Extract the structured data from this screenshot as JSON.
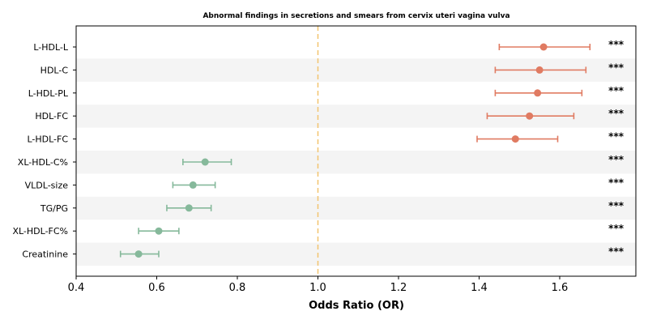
{
  "chart_data": {
    "type": "forest",
    "title": "Abnormal findings in secretions and smears from cervix uteri vagina vulva",
    "xlabel": "Odds Ratio (OR)",
    "xlim": [
      0.4,
      1.76
    ],
    "xticks": [
      "0.4",
      "0.6",
      "0.8",
      "1.0",
      "1.2",
      "1.4",
      "1.6"
    ],
    "reference_line": 1.0,
    "grid": false,
    "colors": {
      "positive": "#e07b62",
      "negative": "#86b99b",
      "reference": "#f2c46f",
      "band": "#f4f4f4"
    },
    "rows": [
      {
        "label": "L-HDL-L",
        "or": 1.56,
        "ci_low": 1.45,
        "ci_high": 1.675,
        "sig": "***"
      },
      {
        "label": "HDL-C",
        "or": 1.55,
        "ci_low": 1.44,
        "ci_high": 1.665,
        "sig": "***"
      },
      {
        "label": "L-HDL-PL",
        "or": 1.545,
        "ci_low": 1.44,
        "ci_high": 1.655,
        "sig": "***"
      },
      {
        "label": "HDL-FC",
        "or": 1.525,
        "ci_low": 1.42,
        "ci_high": 1.635,
        "sig": "***"
      },
      {
        "label": "L-HDL-FC",
        "or": 1.49,
        "ci_low": 1.395,
        "ci_high": 1.595,
        "sig": "***"
      },
      {
        "label": "XL-HDL-C%",
        "or": 0.72,
        "ci_low": 0.665,
        "ci_high": 0.785,
        "sig": "***"
      },
      {
        "label": "VLDL-size",
        "or": 0.69,
        "ci_low": 0.64,
        "ci_high": 0.745,
        "sig": "***"
      },
      {
        "label": "TG/PG",
        "or": 0.68,
        "ci_low": 0.625,
        "ci_high": 0.735,
        "sig": "***"
      },
      {
        "label": "XL-HDL-FC%",
        "or": 0.605,
        "ci_low": 0.555,
        "ci_high": 0.655,
        "sig": "***"
      },
      {
        "label": "Creatinine",
        "or": 0.555,
        "ci_low": 0.51,
        "ci_high": 0.605,
        "sig": "***"
      }
    ]
  }
}
